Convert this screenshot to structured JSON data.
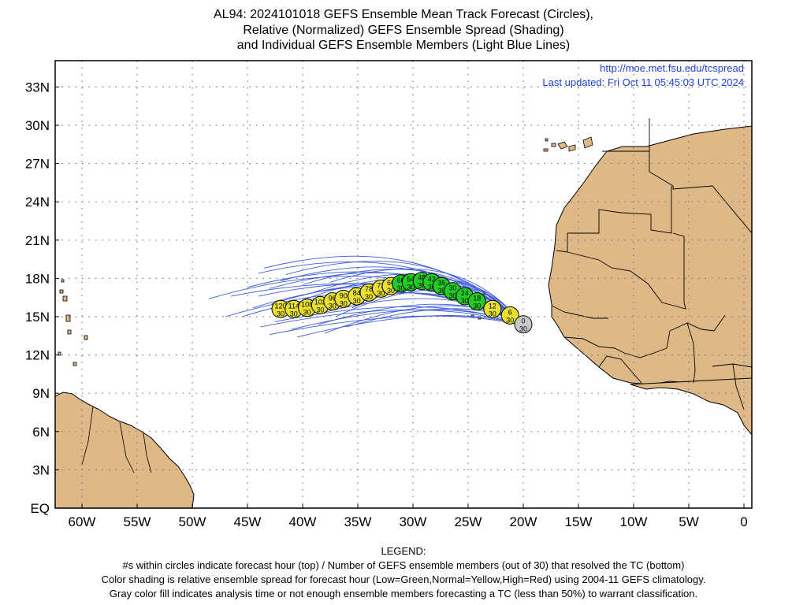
{
  "title": {
    "line1": "AL94: 2024101018 GEFS Ensemble Mean Track Forecast (Circles),",
    "line2": "Relative (Normalized) GEFS Ensemble Spread (Shading)",
    "line3": "and Individual GEFS Ensemble Members (Light Blue Lines)"
  },
  "credit": {
    "url": "http://moe.met.fsu.edu/tcspread",
    "updated": "Last updated: Fri Oct 11 05:45:03 UTC 2024"
  },
  "map": {
    "lat_labels": [
      "33N",
      "30N",
      "27N",
      "24N",
      "21N",
      "18N",
      "15N",
      "12N",
      "9N",
      "6N",
      "3N",
      "EQ"
    ],
    "lon_labels": [
      "60W",
      "55W",
      "50W",
      "45W",
      "40W",
      "35W",
      "30W",
      "25W",
      "20W",
      "15W",
      "10W",
      "5W",
      "0"
    ],
    "land_color": "#deb887",
    "ocean_color": "#ffffff",
    "member_line_color": "#3b5bdb"
  },
  "colors": {
    "gray": "#c8c8c8",
    "green": "#22cc22",
    "yellow": "#e8e030"
  },
  "track": [
    {
      "hour": "0",
      "members": "30",
      "color": "gray",
      "lon": -20.0,
      "lat": 14.4
    },
    {
      "hour": "6",
      "members": "30",
      "color": "yellow",
      "lon": -21.2,
      "lat": 15.1
    },
    {
      "hour": "12",
      "members": "30",
      "color": "yellow",
      "lon": -22.8,
      "lat": 15.6
    },
    {
      "hour": "18",
      "members": "30",
      "color": "green",
      "lon": -24.2,
      "lat": 16.2
    },
    {
      "hour": "24",
      "members": "30",
      "color": "green",
      "lon": -25.3,
      "lat": 16.6
    },
    {
      "hour": "30",
      "members": "30",
      "color": "green",
      "lon": -26.4,
      "lat": 17.0
    },
    {
      "hour": "36",
      "members": "30",
      "color": "green",
      "lon": -27.4,
      "lat": 17.4
    },
    {
      "hour": "42",
      "members": "30",
      "color": "green",
      "lon": -28.3,
      "lat": 17.7
    },
    {
      "hour": "48",
      "members": "30",
      "color": "green",
      "lon": -29.2,
      "lat": 17.8
    },
    {
      "hour": "54",
      "members": "30",
      "color": "green",
      "lon": -30.2,
      "lat": 17.7
    },
    {
      "hour": "60",
      "members": "30",
      "color": "green",
      "lon": -31.1,
      "lat": 17.6
    },
    {
      "hour": "66",
      "members": "30",
      "color": "yellow",
      "lon": -32.0,
      "lat": 17.4
    },
    {
      "hour": "72",
      "members": "30",
      "color": "yellow",
      "lon": -32.9,
      "lat": 17.2
    },
    {
      "hour": "78",
      "members": "30",
      "color": "yellow",
      "lon": -34.0,
      "lat": 16.9
    },
    {
      "hour": "84",
      "members": "30",
      "color": "yellow",
      "lon": -35.1,
      "lat": 16.6
    },
    {
      "hour": "90",
      "members": "30",
      "color": "yellow",
      "lon": -36.3,
      "lat": 16.4
    },
    {
      "hour": "96",
      "members": "30",
      "color": "yellow",
      "lon": -37.3,
      "lat": 16.2
    },
    {
      "hour": "102",
      "members": "30",
      "color": "yellow",
      "lon": -38.4,
      "lat": 15.9
    },
    {
      "hour": "108",
      "members": "30",
      "color": "yellow",
      "lon": -39.6,
      "lat": 15.7
    },
    {
      "hour": "114",
      "members": "30",
      "color": "yellow",
      "lon": -40.8,
      "lat": 15.6
    },
    {
      "hour": "120",
      "members": "30",
      "color": "yellow",
      "lon": -42.0,
      "lat": 15.6
    }
  ],
  "legend": {
    "heading": "LEGEND:",
    "line1": "#s within circles indicate forecast hour (top) / Number of GEFS ensemble members (out of 30) that resolved the TC (bottom)",
    "line2": "Color shading is relative ensemble spread for forecast hour (Low=Green,Normal=Yellow,High=Red) using 2004-11 GEFS climatology.",
    "line3": "Gray color fill indicates analysis time or not enough ensemble members forecasting a TC (less than 50%) to warrant classification."
  }
}
